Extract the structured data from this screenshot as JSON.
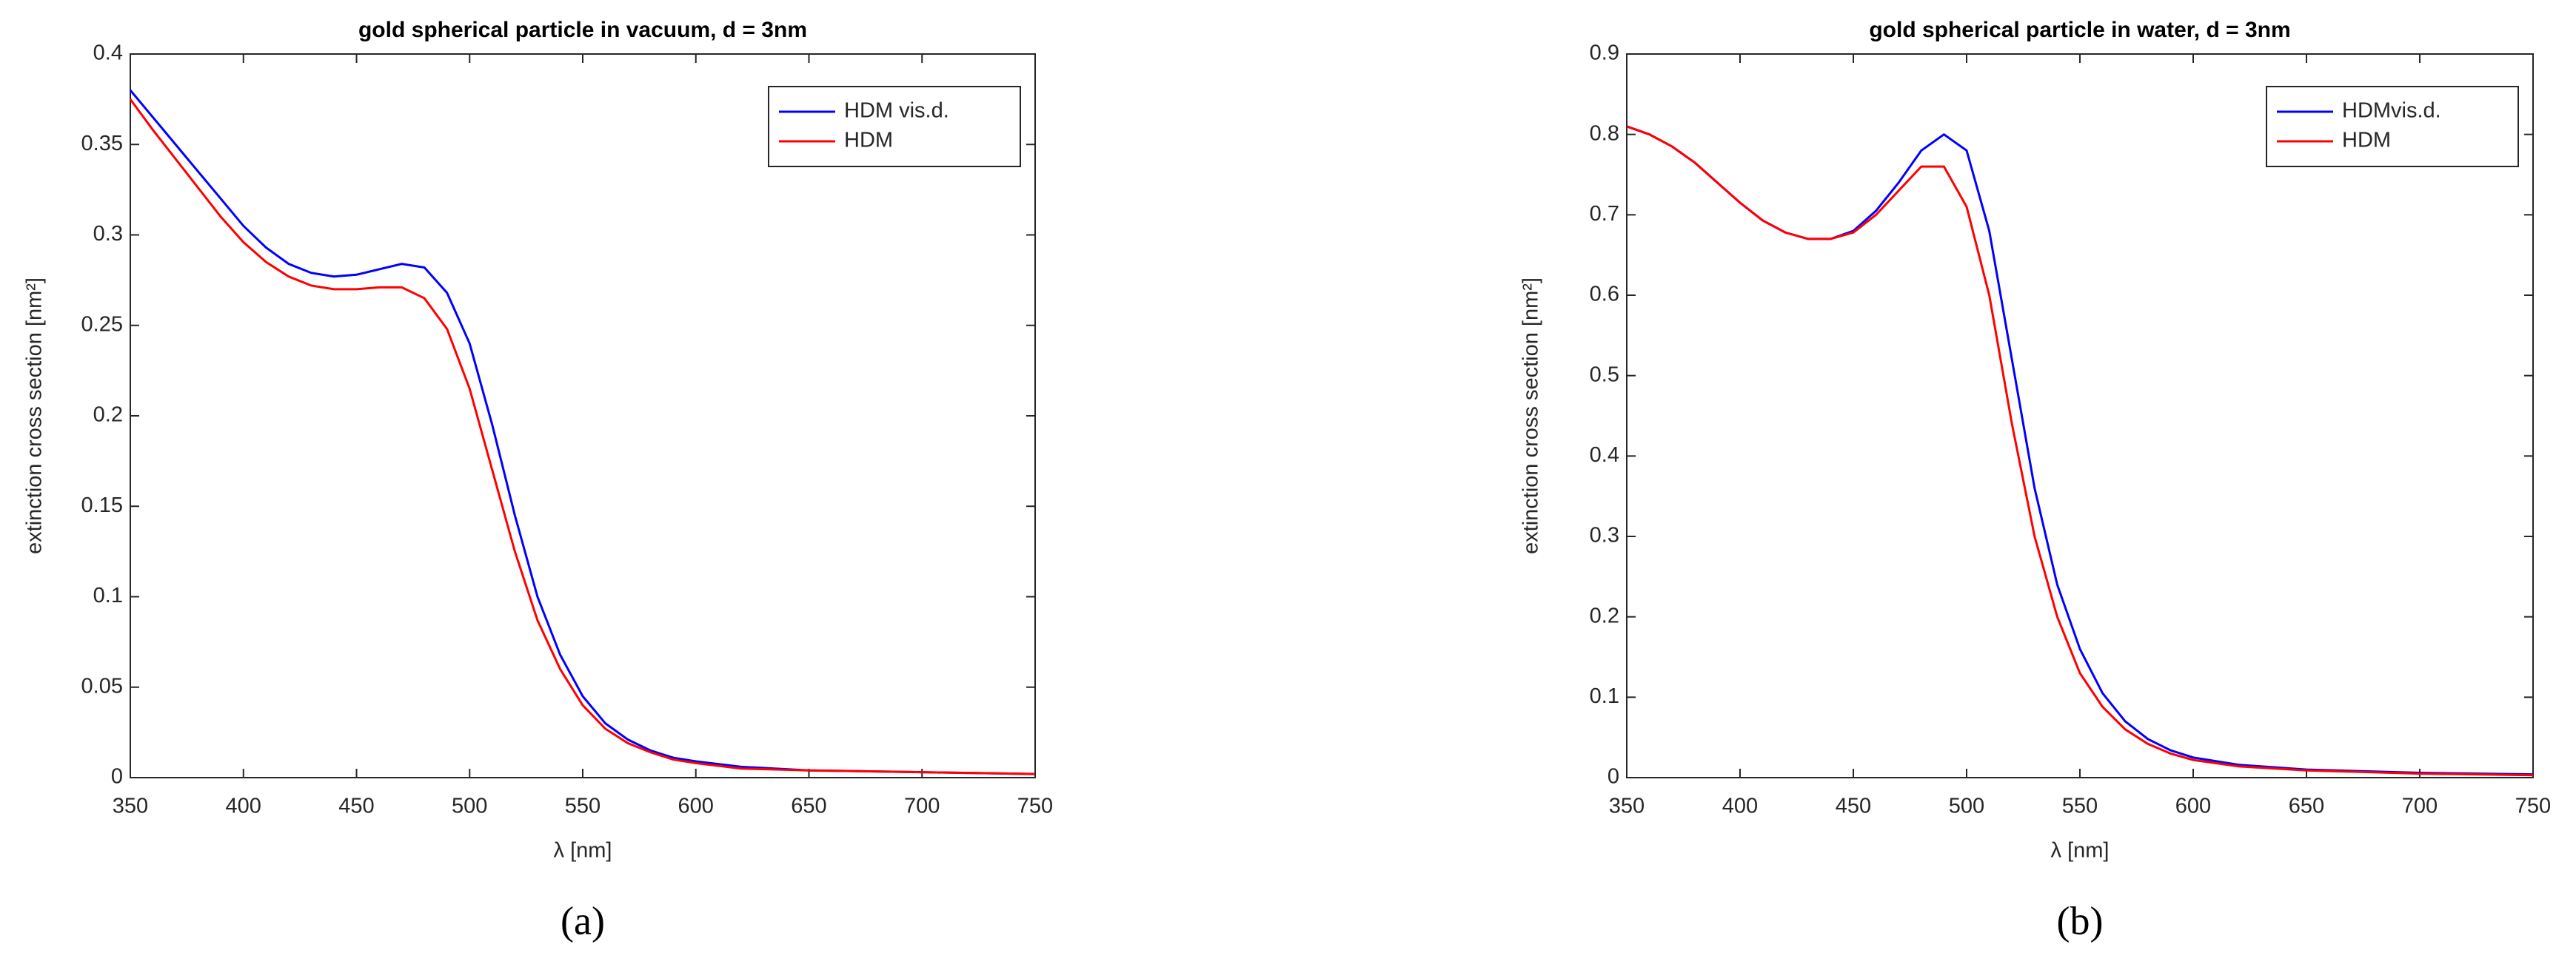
{
  "chart_data": [
    {
      "type": "line",
      "title": "gold spherical particle in vacuum, d = 3nm",
      "xlabel": "λ [nm]",
      "ylabel": "extinction cross section [nm²]",
      "caption": "(a)",
      "x": [
        350,
        360,
        370,
        380,
        390,
        400,
        410,
        420,
        430,
        440,
        450,
        460,
        470,
        480,
        490,
        500,
        510,
        520,
        530,
        540,
        550,
        560,
        570,
        580,
        590,
        600,
        620,
        650,
        700,
        750
      ],
      "xlim": [
        350,
        750
      ],
      "xticks": [
        350,
        400,
        450,
        500,
        550,
        600,
        650,
        700,
        750
      ],
      "ylim": [
        0,
        0.4
      ],
      "yticks": [
        0,
        0.05,
        0.1,
        0.15,
        0.2,
        0.25,
        0.3,
        0.35,
        0.4
      ],
      "legend": "northeast",
      "series": [
        {
          "name": "HDM vis.d.",
          "color": "#0000ff",
          "values": [
            0.38,
            0.365,
            0.35,
            0.335,
            0.32,
            0.305,
            0.293,
            0.284,
            0.279,
            0.277,
            0.278,
            0.281,
            0.284,
            0.282,
            0.268,
            0.24,
            0.195,
            0.145,
            0.1,
            0.068,
            0.045,
            0.03,
            0.021,
            0.015,
            0.011,
            0.009,
            0.006,
            0.004,
            0.003,
            0.002
          ]
        },
        {
          "name": "HDM",
          "color": "#ff0000",
          "values": [
            0.375,
            0.358,
            0.342,
            0.326,
            0.31,
            0.296,
            0.285,
            0.277,
            0.272,
            0.27,
            0.27,
            0.271,
            0.271,
            0.265,
            0.248,
            0.215,
            0.17,
            0.125,
            0.087,
            0.06,
            0.04,
            0.027,
            0.019,
            0.014,
            0.01,
            0.008,
            0.005,
            0.004,
            0.003,
            0.002
          ]
        }
      ]
    },
    {
      "type": "line",
      "title": "gold spherical particle in water, d = 3nm",
      "xlabel": "λ [nm]",
      "ylabel": "extinction cross section [nm²]",
      "caption": "(b)",
      "x": [
        350,
        360,
        370,
        380,
        390,
        400,
        410,
        420,
        430,
        440,
        450,
        460,
        470,
        480,
        490,
        500,
        510,
        520,
        530,
        540,
        550,
        560,
        570,
        580,
        590,
        600,
        620,
        650,
        700,
        750
      ],
      "xlim": [
        350,
        750
      ],
      "xticks": [
        350,
        400,
        450,
        500,
        550,
        600,
        650,
        700,
        750
      ],
      "ylim": [
        0,
        0.9
      ],
      "yticks": [
        0,
        0.1,
        0.2,
        0.3,
        0.4,
        0.5,
        0.6,
        0.7,
        0.8,
        0.9
      ],
      "legend": "northeast",
      "series": [
        {
          "name": "HDMvis.d.",
          "color": "#0000ff",
          "values": [
            0.81,
            0.8,
            0.785,
            0.765,
            0.74,
            0.715,
            0.693,
            0.678,
            0.67,
            0.67,
            0.68,
            0.705,
            0.74,
            0.78,
            0.8,
            0.78,
            0.68,
            0.52,
            0.36,
            0.24,
            0.16,
            0.105,
            0.07,
            0.048,
            0.034,
            0.025,
            0.016,
            0.01,
            0.006,
            0.004
          ]
        },
        {
          "name": "HDM",
          "color": "#ff0000",
          "values": [
            0.81,
            0.8,
            0.785,
            0.765,
            0.74,
            0.715,
            0.693,
            0.678,
            0.67,
            0.67,
            0.678,
            0.7,
            0.73,
            0.76,
            0.76,
            0.71,
            0.6,
            0.44,
            0.3,
            0.2,
            0.13,
            0.088,
            0.06,
            0.042,
            0.03,
            0.022,
            0.014,
            0.009,
            0.005,
            0.003
          ]
        }
      ]
    }
  ]
}
